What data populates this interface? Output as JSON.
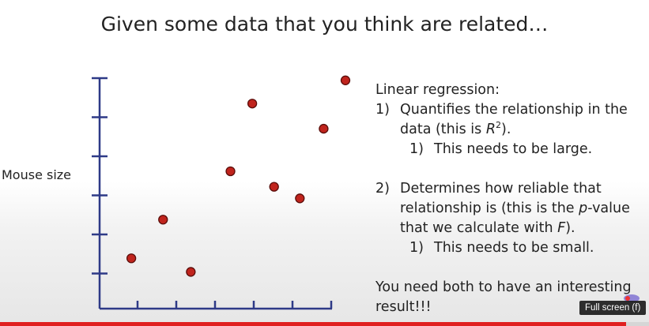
{
  "slide": {
    "title": "Given some data that you think are related…",
    "y_axis_label": "Mouse size",
    "heading": "Linear regression:",
    "item1_num": "1)",
    "item1_a": "Quantifies the relationship in the",
    "item1_b_pre": "data (this is ",
    "item1_b_var": "R",
    "item1_b_sup": "2",
    "item1_b_post": ").",
    "sub1_num": "1)",
    "sub1_text": "This needs to be large.",
    "item2_num": "2)",
    "item2_a": "Determines how reliable that",
    "item2_b": "relationship is (this is the ",
    "item2_b_var": "p",
    "item2_b_post": "-value",
    "item2_c_pre": "that we calculate with ",
    "item2_c_var": "F",
    "item2_c_post": ").",
    "sub2_num": "1)",
    "sub2_text": "This needs to be small.",
    "conclusion_a": "You need both to have an interesting",
    "conclusion_b": "result!!!"
  },
  "chart_data": {
    "type": "scatter",
    "title": "",
    "xlabel": "",
    "ylabel": "Mouse size",
    "x_ticks": 6,
    "y_ticks": 6,
    "points": [
      {
        "x": 0.8,
        "y": 0.5
      },
      {
        "x": 1.6,
        "y": 1.5
      },
      {
        "x": 2.3,
        "y": 0.15
      },
      {
        "x": 3.3,
        "y": 2.75
      },
      {
        "x": 3.85,
        "y": 4.5
      },
      {
        "x": 4.4,
        "y": 2.35
      },
      {
        "x": 5.05,
        "y": 2.05
      },
      {
        "x": 5.65,
        "y": 3.85
      },
      {
        "x": 6.2,
        "y": 5.1
      }
    ],
    "xlim": [
      0,
      6.2
    ],
    "ylim": [
      -0.8,
      5.3
    ],
    "point_color": "#c0241d",
    "axis_color": "#2e3a87"
  },
  "player": {
    "tooltip": "Full screen (f)",
    "progress_fraction": 0.965,
    "progress_color": "#e02020"
  }
}
